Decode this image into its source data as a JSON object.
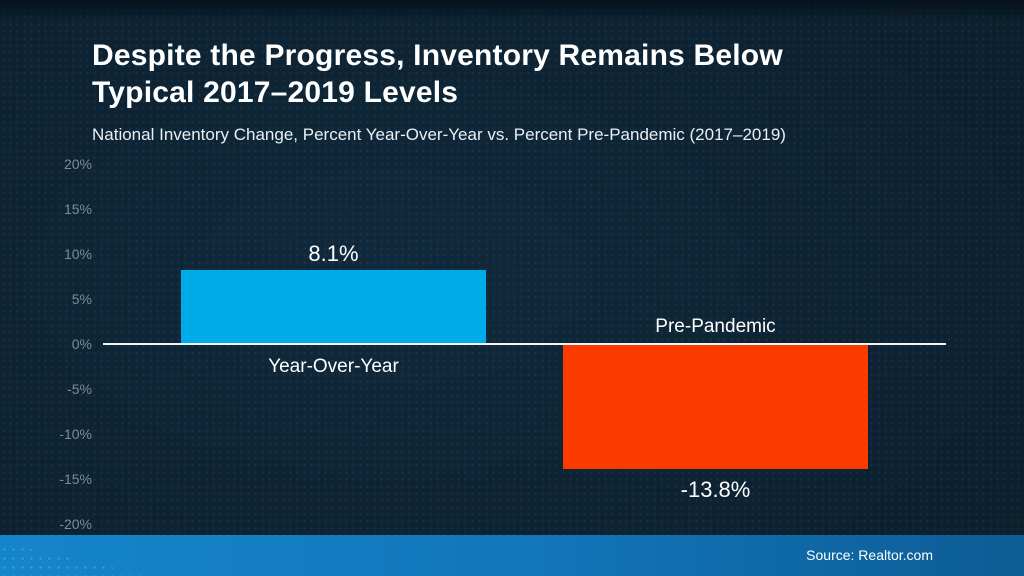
{
  "header": {
    "title_line1": "Despite the Progress, Inventory Remains Below",
    "title_line2": "Typical 2017–2019 Levels",
    "subtitle": "National Inventory Change, Percent Year-Over-Year vs. Percent Pre-Pandemic (2017–2019)"
  },
  "footer": {
    "source": "Source: Realtor.com"
  },
  "chart_data": {
    "type": "bar",
    "title": "Despite the Progress, Inventory Remains Below Typical 2017–2019 Levels",
    "subtitle": "National Inventory Change, Percent Year-Over-Year vs. Percent Pre-Pandemic (2017–2019)",
    "categories": [
      "Year-Over-Year",
      "Pre-Pandemic"
    ],
    "values": [
      8.1,
      -13.8
    ],
    "value_labels": [
      "8.1%",
      "-13.8%"
    ],
    "series": [
      {
        "name": "National Inventory Change",
        "values": [
          8.1,
          -13.8
        ]
      }
    ],
    "bar_colors": [
      "#00abea",
      "#fb3a00"
    ],
    "y_ticks": [
      {
        "label": "20%",
        "value": 20
      },
      {
        "label": "15%",
        "value": 15
      },
      {
        "label": "10%",
        "value": 10
      },
      {
        "label": "5%",
        "value": 5
      },
      {
        "label": "0%",
        "value": 0
      },
      {
        "label": "-5%",
        "value": -5
      },
      {
        "label": "-10%",
        "value": -10
      },
      {
        "label": "-15%",
        "value": -15
      },
      {
        "label": "-20%",
        "value": -20
      }
    ],
    "ylim": [
      -20,
      20
    ],
    "xlabel": "",
    "ylabel": "",
    "grid": false,
    "legend": "none",
    "baseline_color": "#f2f5f7"
  },
  "colors": {
    "background": "#0d2333",
    "bar_positive": "#00abea",
    "bar_negative": "#fb3a00",
    "axis_label": "#7d8b96",
    "title_text": "#ffffff",
    "baseline": "#f2f5f7",
    "footer_gradient": [
      "#1585c9",
      "#1277bb",
      "#0d5c95"
    ]
  }
}
